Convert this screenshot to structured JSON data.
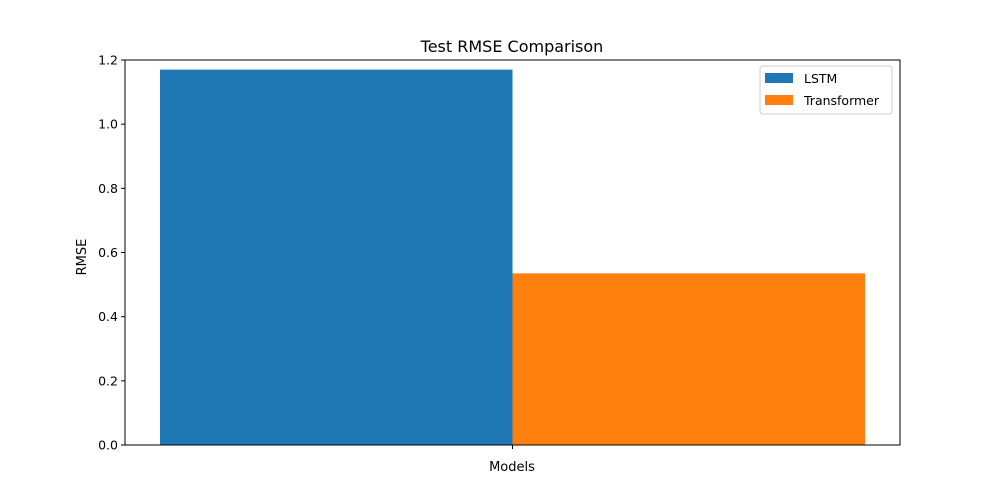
{
  "chart_data": {
    "type": "bar",
    "title": "Test RMSE Comparison",
    "xlabel": "Models",
    "ylabel": "RMSE",
    "categories": [
      ""
    ],
    "series": [
      {
        "name": "LSTM",
        "values": [
          1.17
        ],
        "color": "#1f77b4"
      },
      {
        "name": "Transformer",
        "values": [
          0.535
        ],
        "color": "#ff7f0e"
      }
    ],
    "ylim": [
      0,
      1.2
    ],
    "yticks": [
      0.0,
      0.2,
      0.4,
      0.6,
      0.8,
      1.0,
      1.2
    ],
    "ytick_labels": [
      "0.0",
      "0.2",
      "0.4",
      "0.6",
      "0.8",
      "1.0",
      "1.2"
    ],
    "grid": false,
    "legend_position": "top-right"
  }
}
